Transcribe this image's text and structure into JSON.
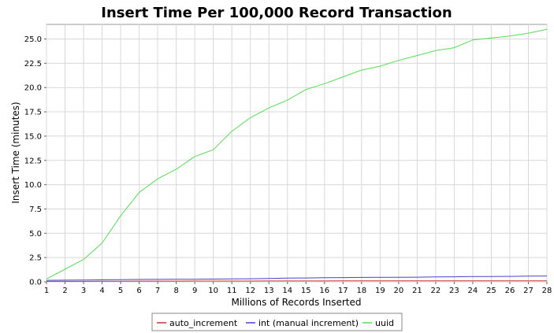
{
  "chart_data": {
    "type": "line",
    "title": "Insert Time Per 100,000 Record Transaction",
    "xlabel": "Millions of Records Inserted",
    "ylabel": "Insert Time (minutes)",
    "xlim": [
      1,
      28
    ],
    "ylim": [
      0,
      26.5
    ],
    "x_ticks": [
      1,
      2,
      3,
      4,
      5,
      6,
      7,
      8,
      9,
      10,
      11,
      12,
      13,
      14,
      15,
      16,
      17,
      18,
      19,
      20,
      21,
      22,
      23,
      24,
      25,
      26,
      27,
      28
    ],
    "y_ticks": [
      0.0,
      2.5,
      5.0,
      7.5,
      10.0,
      12.5,
      15.0,
      17.5,
      20.0,
      22.5,
      25.0
    ],
    "y_tick_labels": [
      "0.0",
      "2.5",
      "5.0",
      "7.5",
      "10.0",
      "12.5",
      "15.0",
      "17.5",
      "20.0",
      "22.5",
      "25.0"
    ],
    "grid": true,
    "legend_position": "bottom",
    "x": [
      1,
      2,
      3,
      4,
      5,
      6,
      7,
      8,
      9,
      10,
      11,
      12,
      13,
      14,
      15,
      16,
      17,
      18,
      19,
      20,
      21,
      22,
      23,
      24,
      25,
      26,
      27,
      28
    ],
    "series": [
      {
        "name": "auto_increment",
        "color": "#cc3333",
        "values": [
          0.05,
          0.05,
          0.05,
          0.06,
          0.06,
          0.07,
          0.07,
          0.07,
          0.08,
          0.08,
          0.08,
          0.08,
          0.09,
          0.09,
          0.09,
          0.09,
          0.1,
          0.1,
          0.1,
          0.1,
          0.1,
          0.1,
          0.1,
          0.1,
          0.1,
          0.1,
          0.1,
          0.1
        ]
      },
      {
        "name": "int (manual increment)",
        "color": "#4444cc",
        "values": [
          0.15,
          0.17,
          0.18,
          0.2,
          0.22,
          0.24,
          0.25,
          0.26,
          0.27,
          0.28,
          0.3,
          0.32,
          0.35,
          0.38,
          0.4,
          0.42,
          0.44,
          0.45,
          0.46,
          0.47,
          0.48,
          0.5,
          0.52,
          0.54,
          0.55,
          0.56,
          0.58,
          0.6
        ]
      },
      {
        "name": "uuid",
        "color": "#55dd55",
        "values": [
          0.3,
          1.3,
          2.3,
          4.0,
          6.8,
          9.2,
          10.6,
          11.6,
          12.9,
          13.6,
          15.5,
          16.9,
          17.9,
          18.7,
          19.8,
          20.4,
          21.1,
          21.8,
          22.2,
          22.8,
          23.3,
          23.8,
          24.1,
          24.9,
          25.1,
          25.3,
          25.6,
          26.0
        ]
      }
    ]
  }
}
